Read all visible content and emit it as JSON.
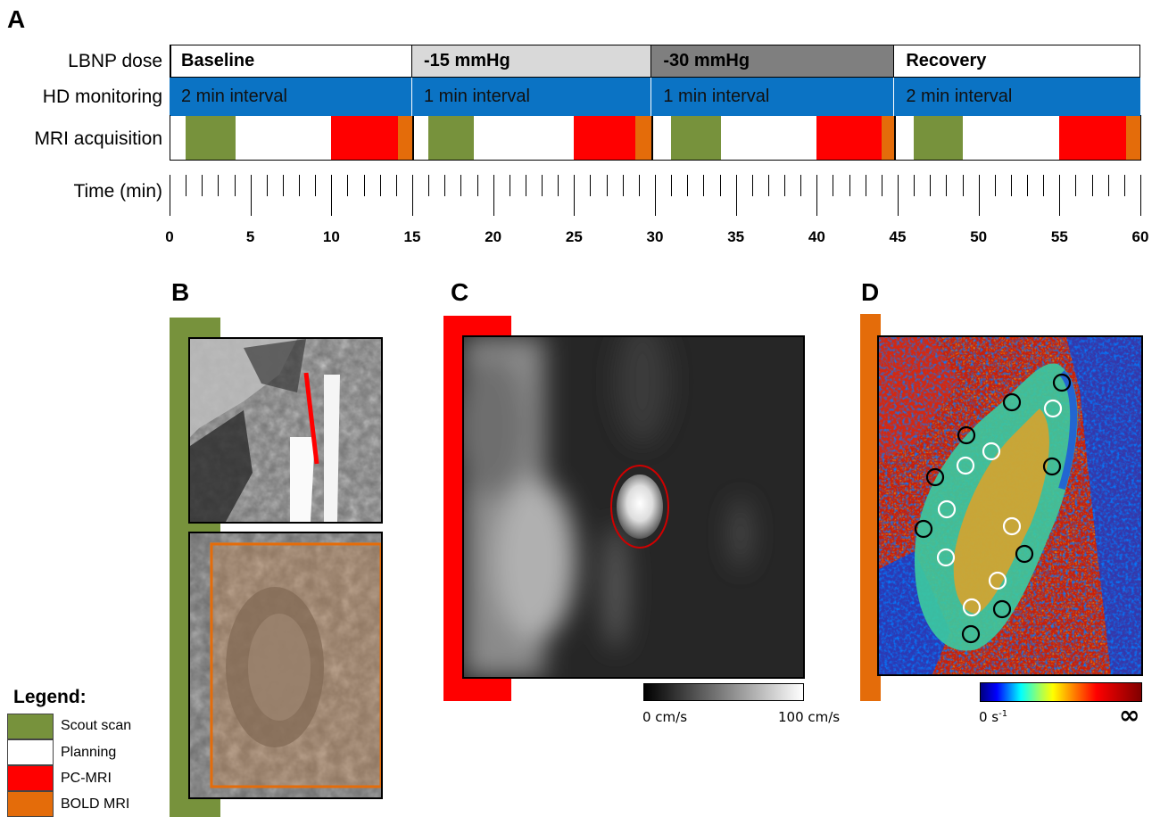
{
  "panel_letters": {
    "a": "A",
    "b": "B",
    "c": "C",
    "d": "D"
  },
  "rows": {
    "lbnp": "LBNP dose",
    "hd": "HD monitoring",
    "mri": "MRI acquisition",
    "time": "Time (min)"
  },
  "phases": [
    {
      "dose": "Baseline",
      "hd": "2 min interval",
      "start": 0,
      "end": 15,
      "color": "#ffffff"
    },
    {
      "dose": "-15 mmHg",
      "hd": "1 min interval",
      "start": 15,
      "end": 29.8,
      "color": "#d9d9d9"
    },
    {
      "dose": "-30 mmHg",
      "hd": "1 min interval",
      "start": 29.8,
      "end": 44.8,
      "color": "#7f7f7f"
    },
    {
      "dose": "Recovery",
      "hd": "2 min interval",
      "start": 44.8,
      "end": 60,
      "color": "#ffffff"
    }
  ],
  "mri_blocks": [
    {
      "type": "scout",
      "start": 1,
      "end": 4.1
    },
    {
      "type": "pc",
      "start": 10,
      "end": 14.1
    },
    {
      "type": "bold",
      "start": 14.1,
      "end": 15
    },
    {
      "type": "scout",
      "start": 16,
      "end": 18.8
    },
    {
      "type": "pc",
      "start": 25,
      "end": 28.8
    },
    {
      "type": "bold",
      "start": 28.8,
      "end": 29.8
    },
    {
      "type": "scout",
      "start": 31,
      "end": 34.1
    },
    {
      "type": "pc",
      "start": 40,
      "end": 44
    },
    {
      "type": "bold",
      "start": 44,
      "end": 44.8
    },
    {
      "type": "scout",
      "start": 46,
      "end": 49
    },
    {
      "type": "pc",
      "start": 55,
      "end": 59.1
    },
    {
      "type": "bold",
      "start": 59.1,
      "end": 60
    }
  ],
  "time_axis": {
    "min": 0,
    "max": 60,
    "ticks": [
      "0",
      "5",
      "10",
      "15",
      "20",
      "25",
      "30",
      "35",
      "40",
      "45",
      "50",
      "55",
      "60"
    ]
  },
  "colors": {
    "scout": "#77923c",
    "planning": "#ffffff",
    "pc": "#ff0000",
    "bold": "#e46c0a",
    "hd": "#0b73c4"
  },
  "legend": {
    "title": "Legend:",
    "items": [
      {
        "label": "Scout scan",
        "color": "#77923c"
      },
      {
        "label": "Planning",
        "color": "#ffffff"
      },
      {
        "label": "PC-MRI",
        "color": "#ff0000"
      },
      {
        "label": "BOLD MRI",
        "color": "#e46c0a"
      }
    ]
  },
  "colorbar_c": {
    "min_label": "0 cm/s",
    "max_label": "100 cm/s"
  },
  "colorbar_d": {
    "min_label": "0 s",
    "min_sup": "-1",
    "max_label": "∞"
  }
}
